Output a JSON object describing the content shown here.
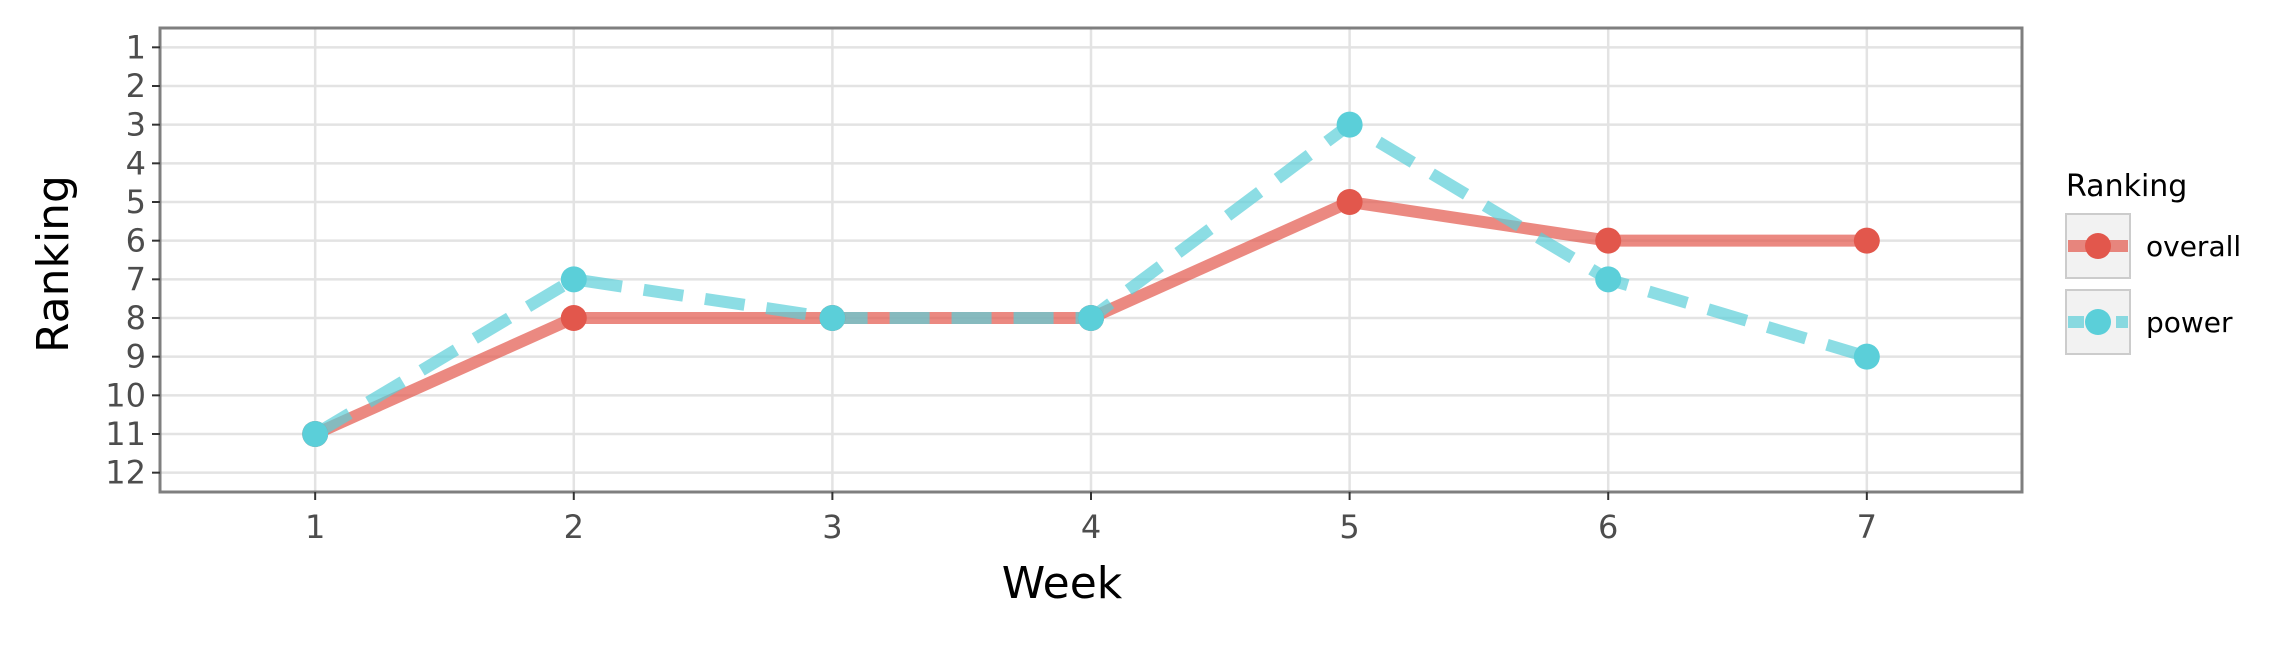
{
  "chart_data": {
    "type": "line",
    "title": "",
    "xlabel": "Week",
    "ylabel": "Ranking",
    "x": [
      1,
      2,
      3,
      4,
      5,
      6,
      7
    ],
    "xlim": [
      0.4,
      7.6
    ],
    "ylim": [
      12.5,
      0.5
    ],
    "y_reversed": true,
    "x_ticks": [
      1,
      2,
      3,
      4,
      5,
      6,
      7
    ],
    "y_ticks": [
      1,
      2,
      3,
      4,
      5,
      6,
      7,
      8,
      9,
      10,
      11,
      12
    ],
    "grid": true,
    "legend": {
      "title": "Ranking",
      "position": "right"
    },
    "series": [
      {
        "name": "overall",
        "values": [
          11,
          8,
          8,
          8,
          5,
          6,
          6
        ],
        "color": "#E2574C",
        "line_style": "solid"
      },
      {
        "name": "power",
        "values": [
          11,
          7,
          8,
          8,
          3,
          7,
          9
        ],
        "color": "#5BCFD9",
        "line_style": "dashed"
      }
    ]
  }
}
